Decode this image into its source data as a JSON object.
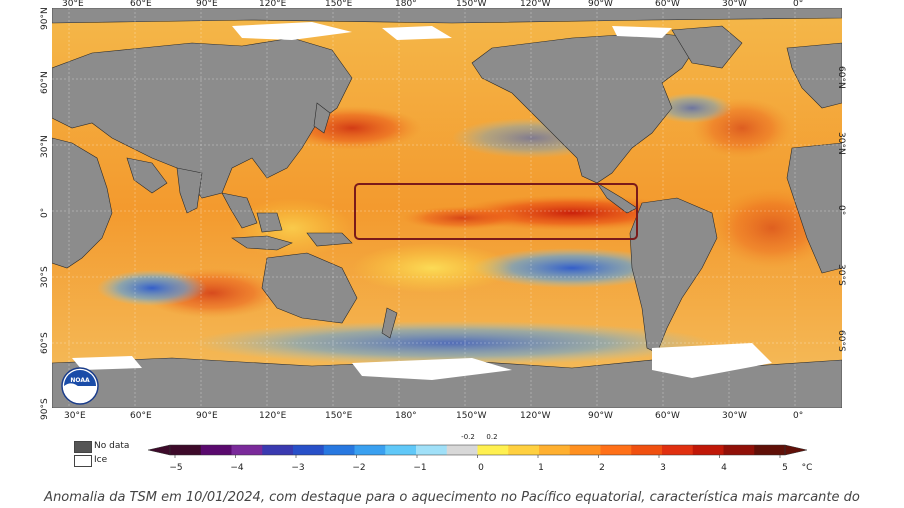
{
  "map": {
    "title_region_highlight": "Pacífico equatorial",
    "lon_labels_top": [
      "30°E",
      "60°E",
      "90°E",
      "120°E",
      "150°E",
      "180°",
      "150°W",
      "120°W",
      "90°W",
      "60°W",
      "30°W",
      "0°"
    ],
    "lon_labels_bottom": [
      "30°E",
      "60°E",
      "90°E",
      "120°E",
      "150°E",
      "180°",
      "150°W",
      "120°W",
      "90°W",
      "60°W",
      "30°W",
      "0°"
    ],
    "lat_labels_left": [
      "90°N",
      "60°N",
      "30°N",
      "0°",
      "30°S",
      "60°S",
      "90°S"
    ],
    "lat_labels_right": [
      "60°N",
      "30°N",
      "0°",
      "30°S",
      "60°S"
    ],
    "logo_text": "NOAA"
  },
  "legend": {
    "no_data_label": "No data",
    "ice_label": "Ice",
    "no_data_color": "#555555",
    "ice_color": "#ffffff"
  },
  "colorbar": {
    "labels": [
      "−5",
      "−4",
      "−3",
      "−2",
      "−1",
      "0",
      "1",
      "2",
      "3",
      "4",
      "5"
    ],
    "small_labels": [
      "-0.2",
      "0.2"
    ],
    "unit": "°C",
    "colors": [
      "#3d0a2a",
      "#5a0a6e",
      "#7a2a9a",
      "#3a3ab0",
      "#2850c8",
      "#2878e0",
      "#3aa0f0",
      "#60c8f8",
      "#a0e0f8",
      "#d8d8d8",
      "#fff050",
      "#ffd040",
      "#ffb030",
      "#ff9020",
      "#ff7018",
      "#f05010",
      "#e03010",
      "#c01808",
      "#901008",
      "#601008"
    ]
  },
  "caption": "Anomalia da TSM em 10/01/2024, com destaque para o aquecimento no Pacífico equatorial, característica mais marcante do"
}
